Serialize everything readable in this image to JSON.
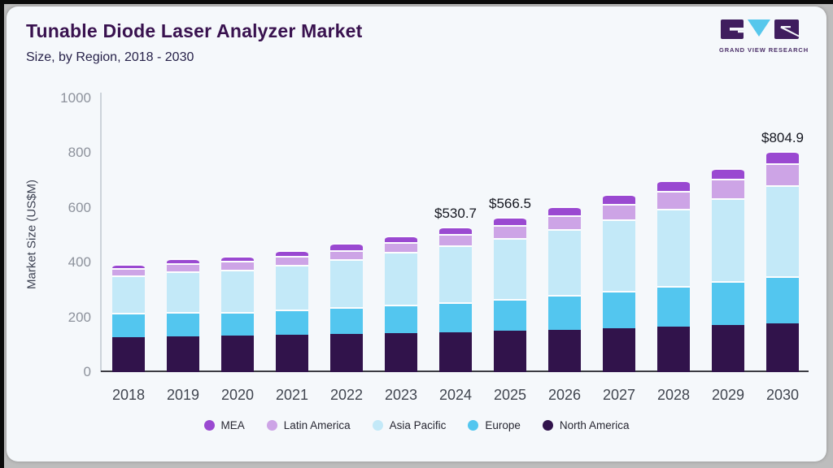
{
  "page": {
    "title": "Tunable Diode Laser Analyzer Market",
    "subtitle": "Size, by Region, 2018 - 2030"
  },
  "logo": {
    "text": "GRAND VIEW RESEARCH",
    "purple": "#3f1d5e",
    "cyan": "#56c7ec"
  },
  "chart_data": {
    "type": "bar",
    "stacked": true,
    "title": "Tunable Diode Laser Analyzer Market Size, by Region, 2018 - 2030",
    "xlabel": "",
    "ylabel": "Market Size (US$M)",
    "ylim": [
      0,
      1000
    ],
    "yticks": [
      0,
      200,
      400,
      600,
      800,
      1000
    ],
    "grid": false,
    "legend_position": "bottom",
    "categories": [
      "2018",
      "2019",
      "2020",
      "2021",
      "2022",
      "2023",
      "2024",
      "2025",
      "2026",
      "2027",
      "2028",
      "2029",
      "2030"
    ],
    "series": [
      {
        "name": "North America",
        "color": "#31134b",
        "values": [
          126,
          129,
          132,
          135,
          139,
          143,
          146,
          150,
          155,
          160,
          166,
          172,
          179
        ]
      },
      {
        "name": "Europe",
        "color": "#53c6ef",
        "values": [
          90,
          90,
          88,
          92,
          97,
          103,
          110,
          118,
          127,
          137,
          148,
          160,
          172
        ]
      },
      {
        "name": "Asia Pacific",
        "color": "#c3e9f8",
        "values": [
          136,
          147,
          153,
          164,
          177,
          193,
          207,
          222,
          240,
          259,
          283,
          301,
          332
        ]
      },
      {
        "name": "Latin America",
        "color": "#cda4e6",
        "values": [
          26,
          31,
          32,
          33,
          33,
          34,
          40,
          45,
          51,
          57,
          64,
          71,
          78
        ]
      },
      {
        "name": "MEA",
        "color": "#9a49d1",
        "values": [
          15,
          18,
          19,
          22,
          25,
          26,
          27.7,
          31.5,
          33,
          36,
          38,
          41,
          43.9
        ]
      }
    ],
    "totals": [
      393,
      415,
      424,
      446,
      471,
      499,
      530.7,
      566.5,
      606,
      649,
      699,
      745,
      804.9
    ],
    "annotations": [
      {
        "category": "2024",
        "label": "$530.7"
      },
      {
        "category": "2025",
        "label": "$566.5"
      },
      {
        "category": "2030",
        "label": "$804.9"
      }
    ],
    "legend": [
      "MEA",
      "Latin America",
      "Asia Pacific",
      "Europe",
      "North America"
    ]
  }
}
